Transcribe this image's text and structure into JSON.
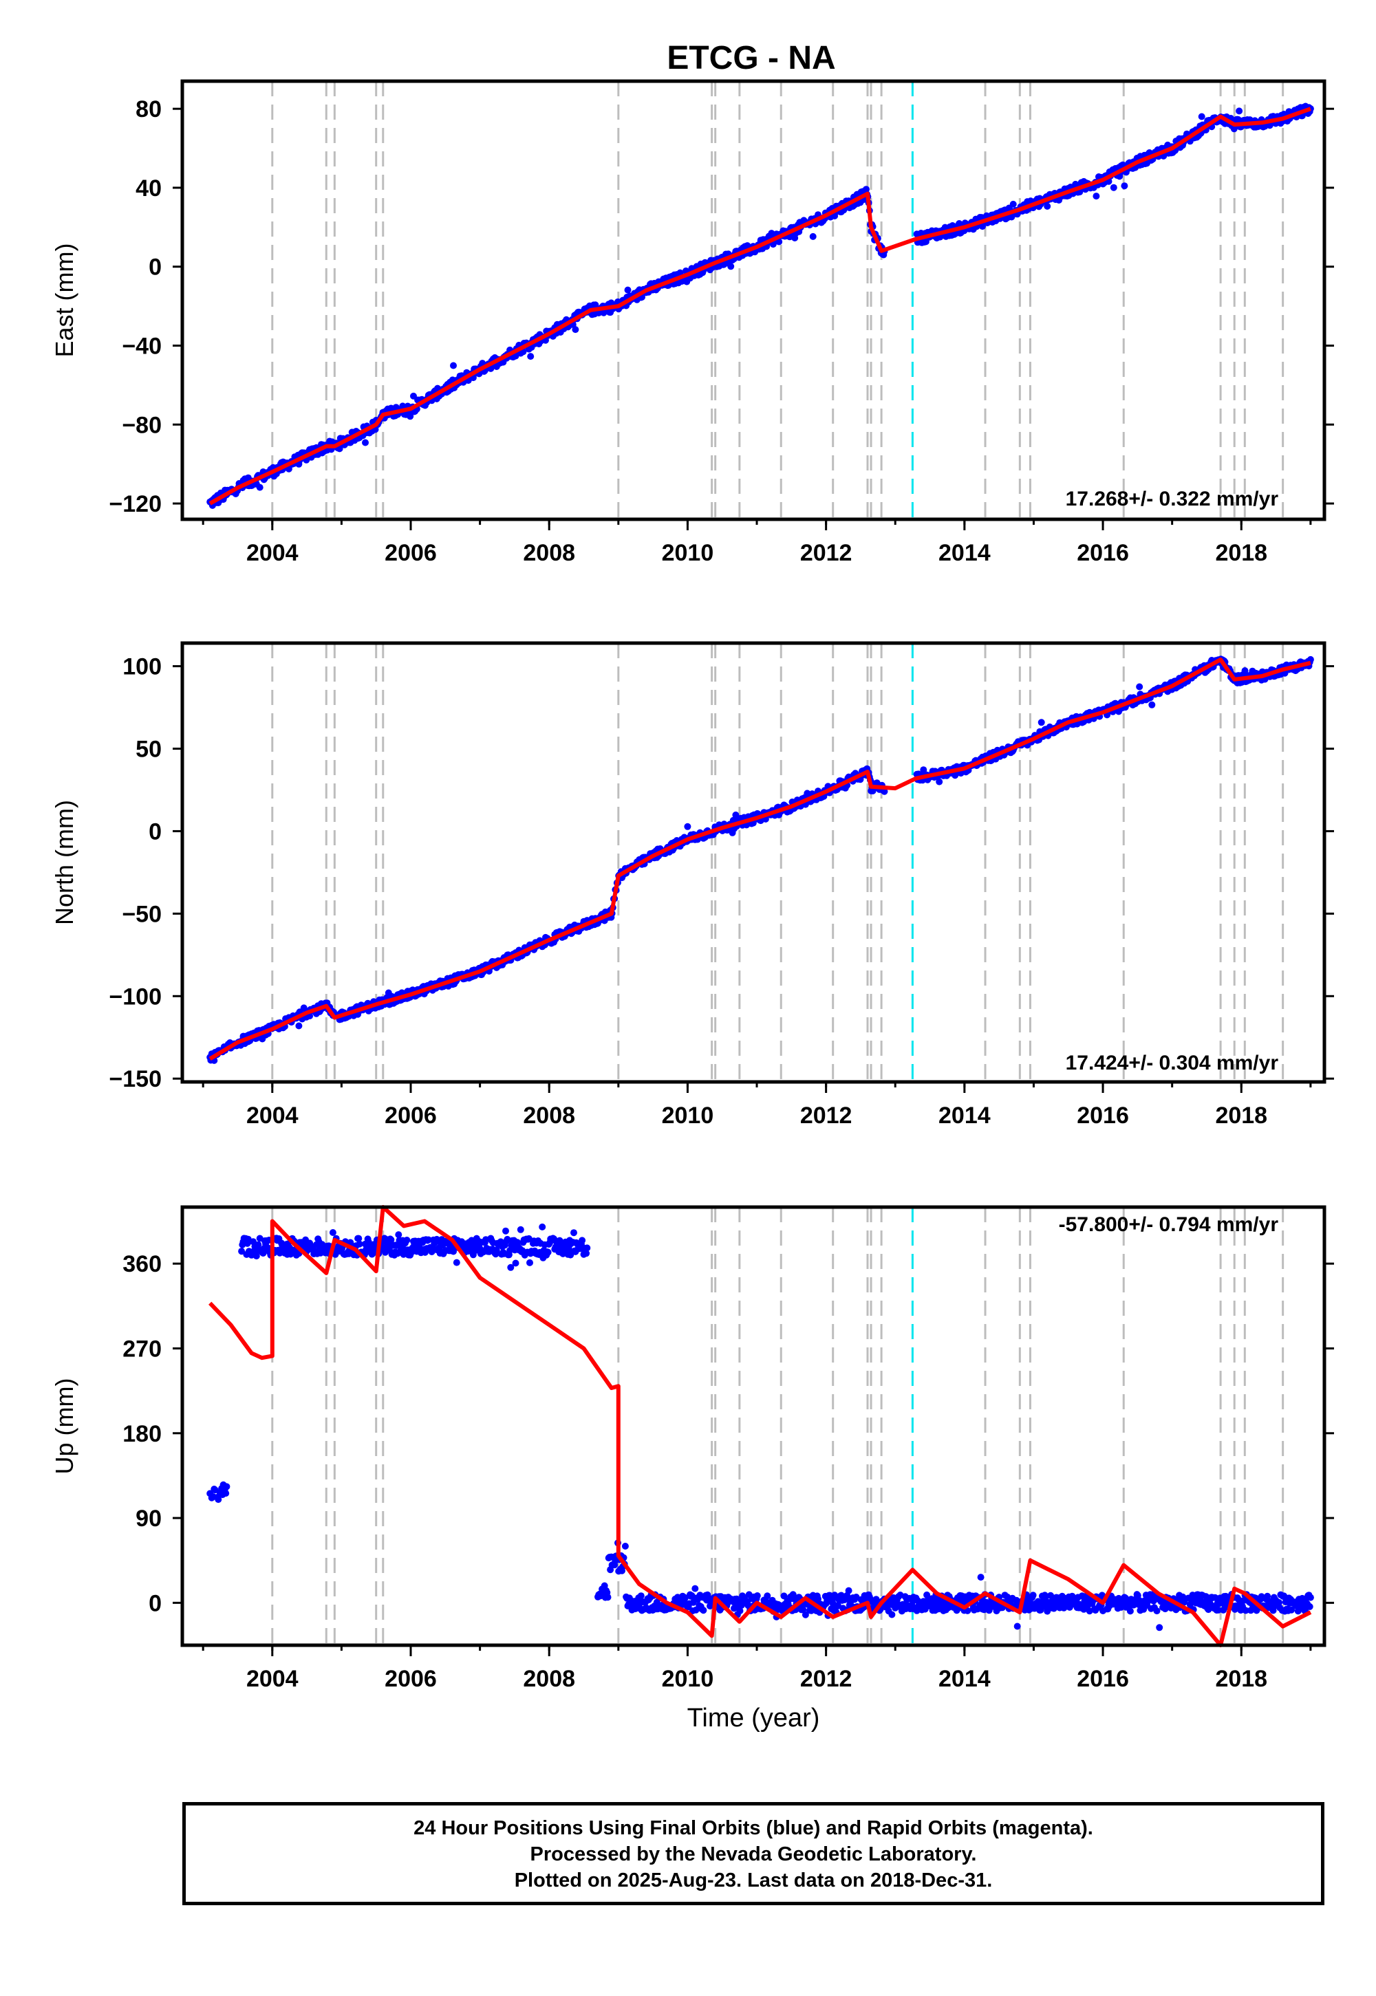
{
  "title": "ETCG - NA",
  "footer": {
    "lines": [
      "24 Hour Positions Using Final Orbits (blue) and Rapid Orbits (magenta).",
      "Processed by the Nevada Geodetic Laboratory.",
      "Plotted on 2025-Aug-23. Last data on 2018-Dec-31."
    ]
  },
  "colors": {
    "data": "#0000ff",
    "model": "#ff0000",
    "steps": "#bdbdbd",
    "equipment": "#00e5ee",
    "axis": "#000000"
  },
  "chart_data": [
    {
      "type": "scatter",
      "title": "ETCG - NA",
      "ylabel": "East (mm)",
      "xlabel": "",
      "xlim": [
        2002.7,
        2019.2
      ],
      "ylim": [
        -128,
        94
      ],
      "yticks": [
        80,
        40,
        0,
        -40,
        -80,
        -120
      ],
      "xticks": [
        2004,
        2006,
        2008,
        2010,
        2012,
        2014,
        2016,
        2018
      ],
      "rate_label": "17.268+/- 0.322 mm/yr",
      "grid": false,
      "step_lines": [
        2004.0,
        2004.78,
        2004.9,
        2005.5,
        2005.6,
        2009.0,
        2010.35,
        2010.4,
        2010.75,
        2011.35,
        2012.1,
        2012.6,
        2012.65,
        2012.8,
        2014.3,
        2014.8,
        2014.95,
        2016.3,
        2017.7,
        2017.9,
        2018.05,
        2018.6
      ],
      "equipment_change": [
        2013.25
      ],
      "series": [
        {
          "x": [
            2003.1,
            2003.5,
            2004.0,
            2004.78,
            2004.9,
            2005.5,
            2005.6,
            2006.0,
            2007.0,
            2008.0,
            2008.6,
            2009.0,
            2009.4,
            2010.0,
            2010.4,
            2011.0,
            2011.5,
            2012.0,
            2012.6,
            2012.65,
            2012.8,
            2013.3,
            2014.0,
            2014.8,
            2015.5,
            2016.0,
            2016.5,
            2017.0,
            2017.7,
            2017.9,
            2018.3,
            2018.6,
            2019.0
          ],
          "values": [
            -120,
            -112,
            -104,
            -91,
            -91,
            -80,
            -75,
            -72,
            -52,
            -34,
            -22,
            -20,
            -12,
            -4,
            2,
            10,
            18,
            26,
            37,
            20,
            8,
            14,
            20,
            29,
            38,
            44,
            53,
            60,
            76,
            72,
            73,
            75,
            80
          ]
        }
      ]
    },
    {
      "type": "scatter",
      "title": "",
      "ylabel": "North (mm)",
      "xlabel": "",
      "xlim": [
        2002.7,
        2019.2
      ],
      "ylim": [
        -152,
        114
      ],
      "yticks": [
        100,
        50,
        0,
        -50,
        -100,
        -150
      ],
      "xticks": [
        2004,
        2006,
        2008,
        2010,
        2012,
        2014,
        2016,
        2018
      ],
      "rate_label": "17.424+/- 0.304 mm/yr",
      "grid": false,
      "step_lines": [
        2004.0,
        2004.78,
        2004.9,
        2005.5,
        2005.6,
        2009.0,
        2010.35,
        2010.4,
        2010.75,
        2011.35,
        2012.1,
        2012.6,
        2012.65,
        2012.8,
        2014.3,
        2014.8,
        2014.95,
        2016.3,
        2017.7,
        2017.9,
        2018.05,
        2018.6
      ],
      "equipment_change": [
        2013.25
      ],
      "series": [
        {
          "x": [
            2003.1,
            2003.5,
            2004.0,
            2004.5,
            2004.78,
            2004.9,
            2005.5,
            2006.0,
            2007.0,
            2008.0,
            2008.9,
            2009.0,
            2009.5,
            2010.0,
            2010.5,
            2011.0,
            2011.5,
            2012.0,
            2012.6,
            2012.65,
            2013.0,
            2013.3,
            2014.0,
            2014.5,
            2015.0,
            2015.5,
            2016.0,
            2016.5,
            2017.0,
            2017.7,
            2017.9,
            2018.3,
            2018.6,
            2019.0
          ],
          "values": [
            -138,
            -128,
            -120,
            -110,
            -106,
            -113,
            -105,
            -99,
            -85,
            -66,
            -50,
            -27,
            -15,
            -5,
            2,
            8,
            15,
            24,
            36,
            27,
            26,
            32,
            38,
            47,
            56,
            66,
            72,
            80,
            88,
            104,
            92,
            94,
            98,
            102
          ]
        }
      ]
    },
    {
      "type": "scatter",
      "title": "",
      "ylabel": "Up (mm)",
      "xlabel": "Time (year)",
      "xlim": [
        2002.7,
        2019.2
      ],
      "ylim": [
        -45,
        420
      ],
      "yticks": [
        360,
        270,
        180,
        90,
        0
      ],
      "xticks": [
        2004,
        2006,
        2008,
        2010,
        2012,
        2014,
        2016,
        2018
      ],
      "rate_label": "-57.800+/- 0.794 mm/yr",
      "grid": false,
      "step_lines": [
        2004.0,
        2004.78,
        2004.9,
        2005.5,
        2005.6,
        2009.0,
        2010.35,
        2010.4,
        2010.75,
        2011.35,
        2012.1,
        2012.6,
        2012.65,
        2012.8,
        2014.3,
        2014.8,
        2014.95,
        2016.3,
        2017.7,
        2017.9,
        2018.05,
        2018.6
      ],
      "equipment_change": [
        2013.25
      ],
      "series": [
        {
          "x": [
            2003.1,
            2003.4,
            2003.7,
            2003.85,
            2004.0,
            2004.0,
            2004.3,
            2004.78,
            2004.9,
            2005.2,
            2005.5,
            2005.6,
            2005.9,
            2006.2,
            2006.6,
            2007.0,
            2007.5,
            2008.0,
            2008.5,
            2008.9,
            2009.0,
            2009.0,
            2009.3,
            2009.7,
            2010.0,
            2010.35,
            2010.4,
            2010.75,
            2011.0,
            2011.35,
            2011.7,
            2012.1,
            2012.6,
            2012.65,
            2012.8,
            2013.25,
            2013.6,
            2014.0,
            2014.3,
            2014.8,
            2014.95,
            2015.5,
            2016.0,
            2016.3,
            2016.8,
            2017.3,
            2017.7,
            2017.9,
            2018.05,
            2018.6,
            2019.0
          ],
          "values": [
            318,
            295,
            265,
            260,
            262,
            405,
            382,
            350,
            385,
            375,
            352,
            420,
            400,
            405,
            385,
            345,
            320,
            295,
            270,
            228,
            230,
            50,
            20,
            0,
            -10,
            -35,
            5,
            -20,
            0,
            -15,
            5,
            -15,
            0,
            -15,
            0,
            35,
            10,
            -5,
            10,
            -10,
            45,
            25,
            0,
            40,
            10,
            -10,
            -45,
            15,
            10,
            -25,
            -10
          ]
        }
      ]
    }
  ]
}
